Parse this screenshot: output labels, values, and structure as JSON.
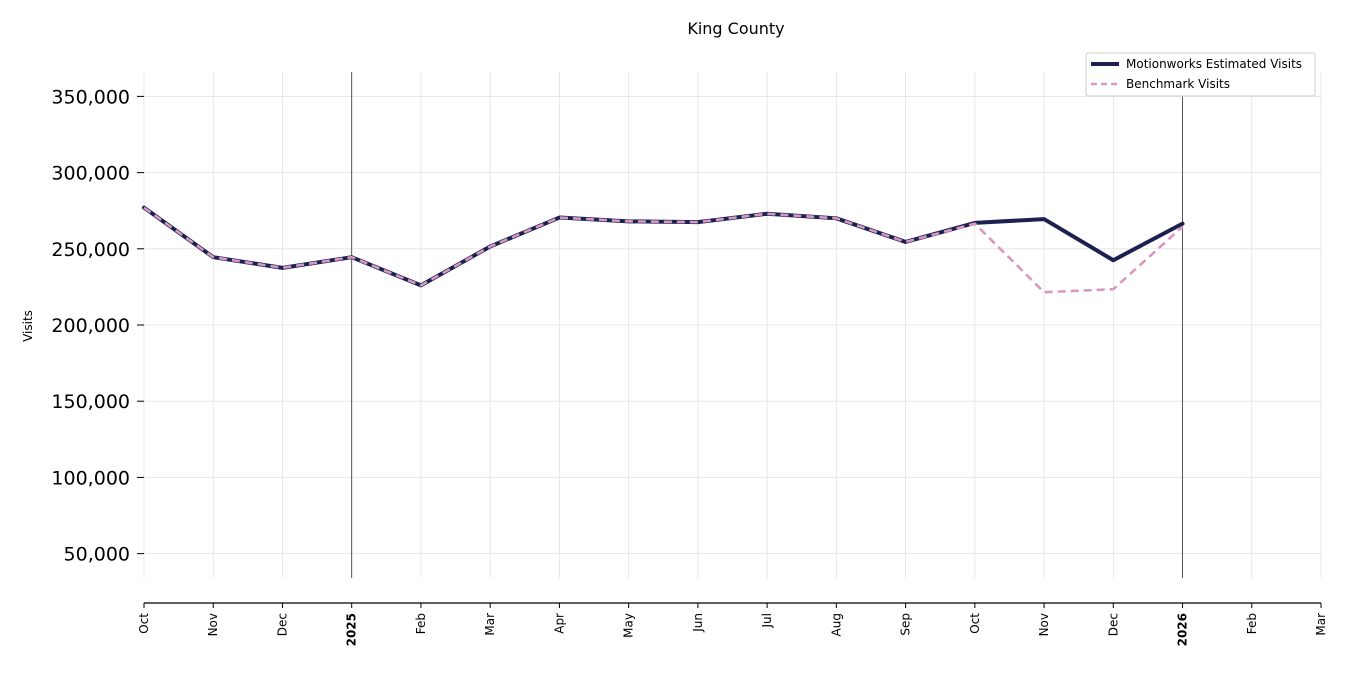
{
  "chart_data": {
    "type": "line",
    "title": "King County",
    "xlabel": "",
    "ylabel": "Visits",
    "ylim": [
      34000,
      366000
    ],
    "yticks": [
      50000,
      100000,
      150000,
      200000,
      250000,
      300000,
      350000
    ],
    "ytick_labels": [
      "50,000",
      "100,000",
      "150,000",
      "200,000",
      "250,000",
      "300,000",
      "350,000"
    ],
    "x_ticks": [
      {
        "label": "Oct",
        "bold": false
      },
      {
        "label": "Nov",
        "bold": false
      },
      {
        "label": "Dec",
        "bold": false
      },
      {
        "label": "2025",
        "bold": true
      },
      {
        "label": "Feb",
        "bold": false
      },
      {
        "label": "Mar",
        "bold": false
      },
      {
        "label": "Apr",
        "bold": false
      },
      {
        "label": "May",
        "bold": false
      },
      {
        "label": "Jun",
        "bold": false
      },
      {
        "label": "Jul",
        "bold": false
      },
      {
        "label": "Aug",
        "bold": false
      },
      {
        "label": "Sep",
        "bold": false
      },
      {
        "label": "Oct",
        "bold": false
      },
      {
        "label": "Nov",
        "bold": false
      },
      {
        "label": "Dec",
        "bold": false
      },
      {
        "label": "2026",
        "bold": true
      },
      {
        "label": "Feb",
        "bold": false
      },
      {
        "label": "Mar",
        "bold": false
      }
    ],
    "x": [
      "2024-10",
      "2024-11",
      "2024-12",
      "2025-01",
      "2025-02",
      "2025-03",
      "2025-04",
      "2025-05",
      "2025-06",
      "2025-07",
      "2025-08",
      "2025-09",
      "2025-10",
      "2025-11",
      "2025-12",
      "2026-01"
    ],
    "year_markers": [
      "2025-01",
      "2026-01"
    ],
    "series": [
      {
        "name": "Motionworks Estimated Visits",
        "color": "#1d2151",
        "style": "solid",
        "values": [
          277000,
          244500,
          237500,
          244500,
          226000,
          251500,
          270500,
          268000,
          267500,
          273000,
          270000,
          254500,
          267000,
          269500,
          242500,
          266500
        ]
      },
      {
        "name": "Benchmark Visits",
        "color": "#d898c0",
        "style": "dashed",
        "values": [
          277000,
          244500,
          237500,
          244500,
          226000,
          251500,
          270500,
          268000,
          267500,
          273000,
          270000,
          254500,
          266500,
          221500,
          223500,
          264500
        ]
      }
    ],
    "grid": true,
    "legend_position": "top-right"
  }
}
